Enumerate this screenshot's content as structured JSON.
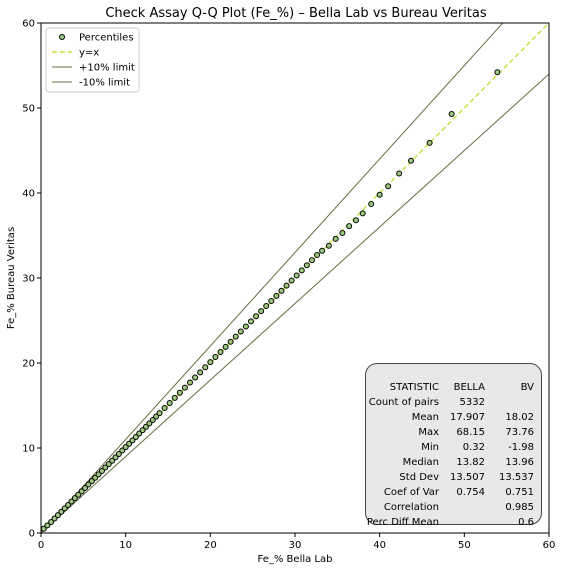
{
  "chart_data": {
    "type": "scatter",
    "title": "Check Assay Q-Q Plot (Fe_%) – Bella Lab vs Bureau Veritas",
    "xlabel": "Fe_% Bella Lab",
    "ylabel": "Fe_% Bureau Veritas",
    "xlim": [
      0,
      60
    ],
    "ylim": [
      0,
      60
    ],
    "xticks": [
      "0",
      "10",
      "20",
      "30",
      "40",
      "50",
      "60"
    ],
    "yticks": [
      "0",
      "10",
      "20",
      "30",
      "40",
      "50",
      "60"
    ],
    "grid": false,
    "legend_position": "top-left",
    "legend": [
      {
        "label": "Percentiles",
        "style": "marker"
      },
      {
        "label": "y=x",
        "style": "dashed"
      },
      {
        "label": "+10% limit",
        "style": "solid"
      },
      {
        "label": "-10% limit",
        "style": "solid"
      }
    ],
    "colors": {
      "marker_fill": "#9bc97f",
      "marker_edge": "#000000",
      "identity": "#c8e04a",
      "limit": "#6b6b45"
    },
    "lines": [
      {
        "name": "y=x",
        "slope": 1.0
      },
      {
        "name": "+10% limit",
        "slope": 1.1
      },
      {
        "name": "-10% limit",
        "slope": 0.9
      }
    ],
    "series": [
      {
        "name": "Percentiles",
        "x": [
          0.32,
          0.75,
          1.2,
          1.6,
          2.0,
          2.4,
          2.8,
          3.2,
          3.6,
          4.0,
          4.4,
          4.8,
          5.2,
          5.6,
          6.0,
          6.4,
          6.8,
          7.2,
          7.6,
          8.0,
          8.4,
          8.8,
          9.2,
          9.6,
          10.0,
          10.4,
          10.8,
          11.2,
          11.6,
          12.0,
          12.4,
          12.8,
          13.2,
          13.6,
          14.0,
          14.6,
          15.2,
          15.8,
          16.4,
          17.0,
          17.6,
          18.2,
          18.8,
          19.4,
          20.0,
          20.6,
          21.2,
          21.8,
          22.4,
          23.0,
          23.6,
          24.2,
          24.8,
          25.4,
          26.0,
          26.6,
          27.2,
          27.8,
          28.4,
          29.0,
          29.6,
          30.2,
          30.8,
          31.4,
          32.0,
          32.6,
          33.2,
          34.0,
          34.8,
          35.6,
          36.4,
          37.2,
          38.0,
          39.0,
          40.0,
          41.0,
          42.3,
          43.7,
          45.9,
          48.5,
          53.9
        ],
        "y": [
          0.5,
          0.9,
          1.3,
          1.7,
          2.1,
          2.5,
          2.9,
          3.3,
          3.7,
          4.1,
          4.5,
          4.9,
          5.3,
          5.7,
          6.1,
          6.5,
          6.9,
          7.3,
          7.7,
          8.1,
          8.5,
          8.9,
          9.3,
          9.7,
          10.1,
          10.5,
          10.9,
          11.3,
          11.7,
          12.1,
          12.5,
          12.9,
          13.3,
          13.7,
          14.1,
          14.7,
          15.3,
          15.9,
          16.5,
          17.1,
          17.7,
          18.3,
          18.9,
          19.5,
          20.1,
          20.7,
          21.3,
          21.9,
          22.5,
          23.1,
          23.7,
          24.3,
          24.9,
          25.5,
          26.1,
          26.7,
          27.3,
          27.9,
          28.5,
          29.1,
          29.7,
          30.3,
          30.9,
          31.5,
          32.1,
          32.7,
          33.2,
          33.8,
          34.6,
          35.3,
          36.1,
          36.8,
          37.6,
          38.7,
          39.8,
          40.8,
          42.3,
          43.8,
          45.9,
          49.3,
          54.2
        ]
      }
    ]
  },
  "stats_table": {
    "headers": [
      "STATISTIC",
      "BELLA",
      "BV"
    ],
    "rows": [
      [
        "Count of pairs",
        "5332",
        ""
      ],
      [
        "Mean",
        "17.907",
        "18.02"
      ],
      [
        "Max",
        "68.15",
        "73.76"
      ],
      [
        "Min",
        "0.32",
        "-1.98"
      ],
      [
        "Median",
        "13.82",
        "13.96"
      ],
      [
        "Std Dev",
        "13.507",
        "13.537"
      ],
      [
        "Coef of Var",
        "0.754",
        "0.751"
      ],
      [
        "Correlation",
        "",
        "0.985"
      ],
      [
        "Perc Diff Mean",
        "",
        "0.6"
      ]
    ]
  }
}
